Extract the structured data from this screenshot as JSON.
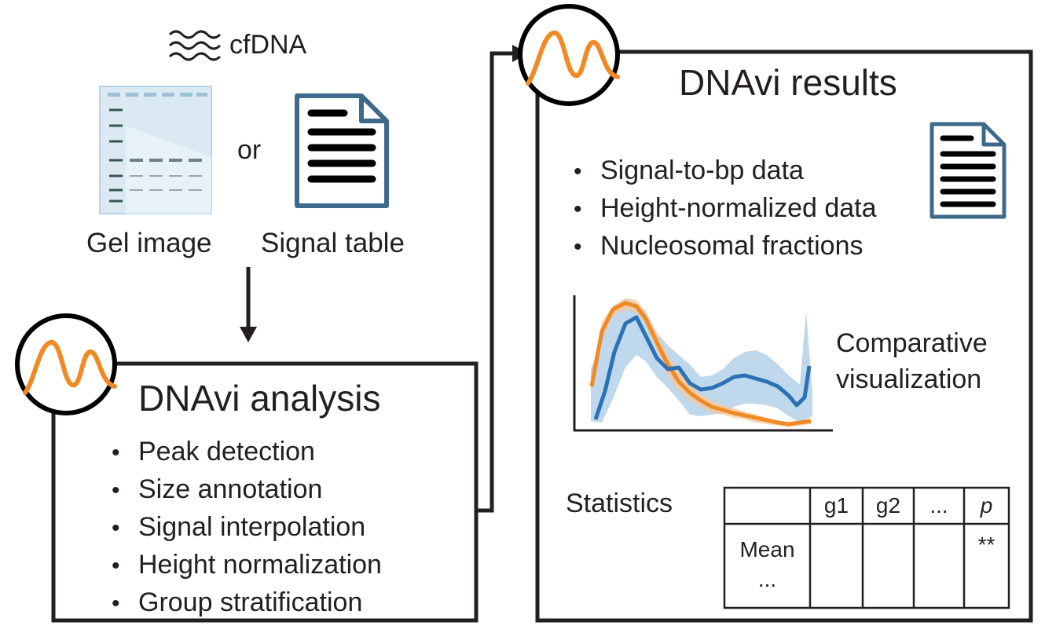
{
  "input": {
    "cfdna_label": "cfDNA",
    "or_label": "or",
    "gel_label": "Gel image",
    "signal_label": "Signal table"
  },
  "analysis": {
    "title": "DNAvi analysis",
    "items": [
      "Peak detection",
      "Size annotation",
      "Signal interpolation",
      "Height normalization",
      "Group stratification"
    ]
  },
  "results": {
    "title": "DNAvi results",
    "items": [
      "Signal-to-bp data",
      "Height-normalized data",
      "Nucleosomal fractions"
    ],
    "viz_label_line1": "Comparative",
    "viz_label_line2": "visualization",
    "stats_label": "Statistics",
    "stats_table": {
      "headers": [
        "",
        "g1",
        "g2",
        "...",
        "p"
      ],
      "row_label_line1": "Mean",
      "row_label_line2": "...",
      "row_values": [
        "",
        "",
        "",
        "**"
      ]
    }
  },
  "colors": {
    "orange": "#f08a24",
    "blue": "#2a72b5",
    "blue_band": "#a9cbe6",
    "orange_band": "#f7c79a",
    "ink": "#231f20",
    "doc_blue": "#3d6a8a"
  }
}
